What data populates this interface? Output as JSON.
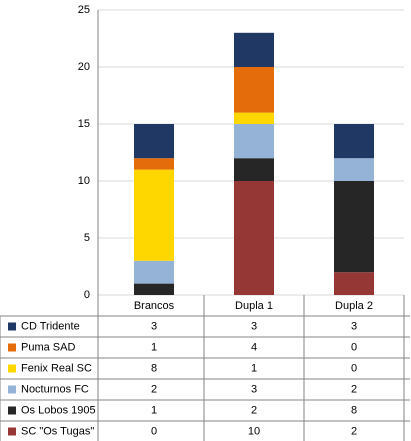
{
  "chart_data": {
    "type": "stacked_bar",
    "categories": [
      "Brancos",
      "Dupla 1",
      "Dupla 2"
    ],
    "series": [
      {
        "name": "CD Tridente",
        "color": "#1f3864",
        "values": [
          3,
          3,
          3
        ]
      },
      {
        "name": "Puma SAD",
        "color": "#e46c0a",
        "values": [
          1,
          4,
          0
        ]
      },
      {
        "name": "Fenix Real SC",
        "color": "#ffd700",
        "values": [
          8,
          1,
          0
        ]
      },
      {
        "name": "Nocturnos FC",
        "color": "#95b3d7",
        "values": [
          2,
          3,
          2
        ]
      },
      {
        "name": "Os Lobos 1905",
        "color": "#262626",
        "values": [
          1,
          2,
          8
        ]
      },
      {
        "name": "SC \"Os Tugas\"",
        "color": "#953735",
        "values": [
          0,
          10,
          2
        ]
      }
    ],
    "ylim": [
      0,
      25
    ],
    "yticks": [
      0,
      5,
      10,
      15,
      20,
      25
    ],
    "grid": true
  }
}
